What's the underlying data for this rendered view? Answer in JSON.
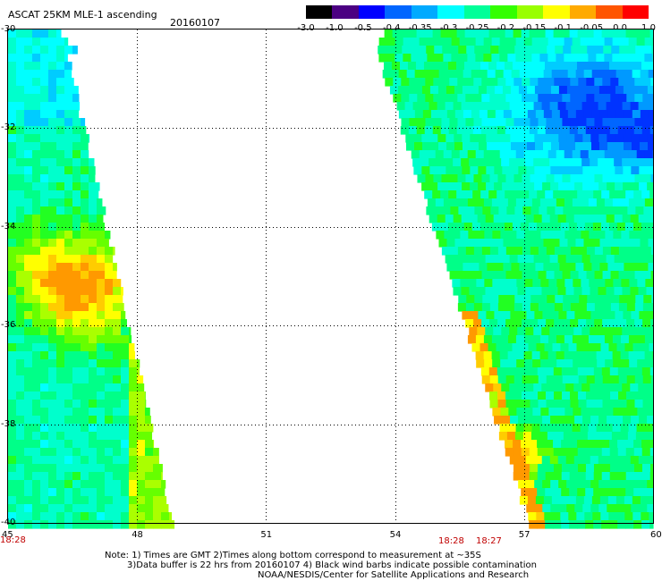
{
  "header": {
    "title": "ASCAT 25KM MLE-1 ascending",
    "date": "20160107"
  },
  "colorbar": {
    "labels": [
      "-3.0",
      "-1.0",
      "-0.5",
      "-0.4",
      "-0.35",
      "-0.3",
      "-0.25",
      "-0.2",
      "-0.15",
      "-0.1",
      "-0.05",
      "0.0",
      "1.0"
    ],
    "colors": [
      "#000000",
      "#4b0082",
      "#0000ff",
      "#0066ff",
      "#00aaff",
      "#00ffff",
      "#00ff99",
      "#33ff00",
      "#99ff00",
      "#ffff00",
      "#ffaa00",
      "#ff5500",
      "#ff0000"
    ]
  },
  "axes": {
    "lon_labels": [
      "45",
      "48",
      "51",
      "54",
      "57",
      "60"
    ],
    "lat_labels": [
      "-30",
      "-32",
      "-34",
      "-36",
      "-38",
      "-40"
    ]
  },
  "time_labels": [
    "18:28",
    "18:28",
    "18:27"
  ],
  "notes": {
    "line1": "Note: 1) Times are GMT 2)Times along bottom correspond to measurement at ~35S",
    "line2": "3)Data buffer is 22 hrs from 20160107 4) Black wind barbs indicate possible contamination",
    "line3": "NOAA/NESDIS/Center for Satellite Applications and Research"
  }
}
